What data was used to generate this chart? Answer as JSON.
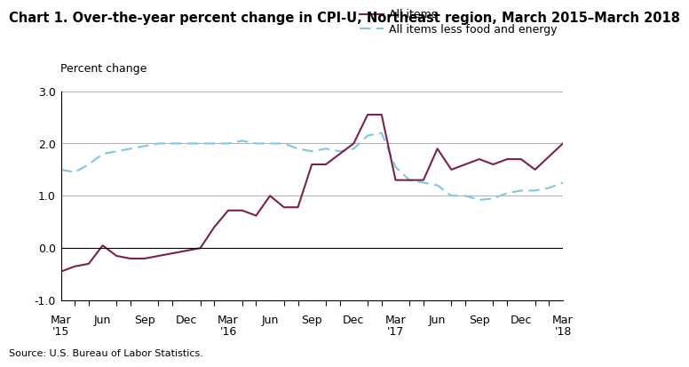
{
  "title": "Chart 1. Over-the-year percent change in CPI-U, Northeast region, March 2015–March 2018",
  "ylabel": "Percent change",
  "source": "Source: U.S. Bureau of Labor Statistics.",
  "ylim": [
    -1.0,
    3.0
  ],
  "yticks": [
    -1.0,
    0.0,
    1.0,
    2.0,
    3.0
  ],
  "all_items": [
    -0.45,
    -0.35,
    -0.3,
    0.05,
    -0.15,
    -0.2,
    -0.2,
    -0.15,
    -0.1,
    -0.05,
    0.0,
    0.4,
    0.72,
    0.72,
    0.62,
    1.0,
    0.78,
    0.78,
    1.6,
    1.6,
    1.8,
    2.0,
    2.55,
    2.55,
    1.3,
    1.3,
    1.3,
    1.9,
    1.5,
    1.6,
    1.7,
    1.6,
    1.7,
    1.7,
    1.5,
    1.75,
    2.0
  ],
  "all_items_less": [
    1.5,
    1.45,
    1.6,
    1.8,
    1.85,
    1.9,
    1.95,
    2.0,
    2.0,
    2.0,
    2.0,
    2.0,
    2.0,
    2.05,
    2.0,
    2.0,
    2.0,
    1.9,
    1.85,
    1.9,
    1.85,
    1.9,
    2.15,
    2.2,
    1.55,
    1.3,
    1.25,
    1.2,
    1.0,
    1.0,
    0.92,
    0.95,
    1.05,
    1.1,
    1.1,
    1.15,
    1.25
  ],
  "x_tick_positions": [
    0,
    3,
    6,
    9,
    12,
    15,
    18,
    21,
    24,
    27,
    30,
    33,
    36
  ],
  "x_tick_labels_line1": [
    "Mar",
    "Jun",
    "Sep",
    "Dec",
    "Mar",
    "Jun",
    "Sep",
    "Dec",
    "Mar",
    "Jun",
    "Sep",
    "Dec",
    "Mar"
  ],
  "x_tick_labels_line2": [
    "'15",
    "",
    "",
    "",
    "'16",
    "",
    "",
    "",
    "'17",
    "",
    "",
    "",
    "'18"
  ],
  "all_items_color": "#7b2150",
  "all_items_less_color": "#7ec8e3",
  "line_width": 1.5,
  "background_color": "#ffffff",
  "grid_color": "#b0b0b0",
  "legend_all_items": "All items",
  "legend_all_items_less": "All items less food and energy",
  "title_fontsize": 10.5,
  "label_fontsize": 9,
  "tick_fontsize": 9,
  "source_fontsize": 8
}
